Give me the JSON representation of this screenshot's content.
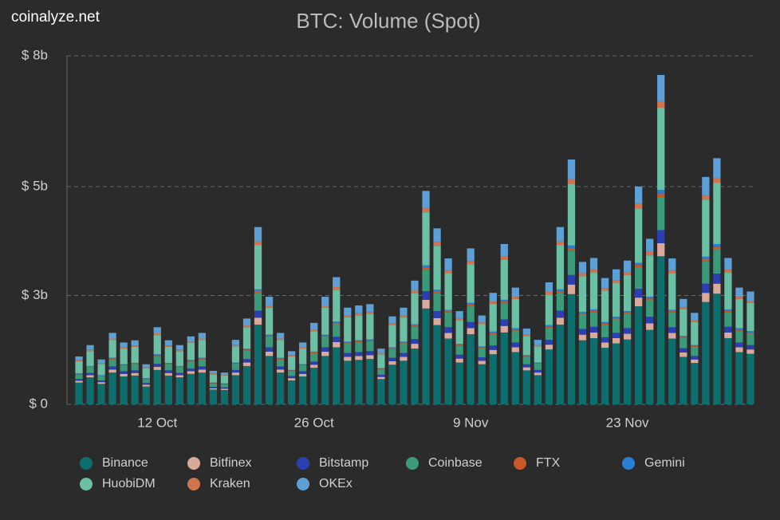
{
  "brand": "coinalyze.net",
  "chart_data": {
    "type": "stacked-bar",
    "title": "BTC: Volume (Spot)",
    "categories": [
      null,
      null,
      null,
      null,
      null,
      null,
      null,
      "12 Oct",
      null,
      null,
      null,
      null,
      null,
      null,
      null,
      null,
      null,
      null,
      null,
      null,
      null,
      "26 Oct",
      null,
      null,
      null,
      null,
      null,
      null,
      null,
      null,
      null,
      null,
      null,
      null,
      null,
      "9 Nov",
      null,
      null,
      null,
      null,
      null,
      null,
      null,
      null,
      null,
      null,
      null,
      null,
      null,
      "23 Nov",
      null,
      null,
      null,
      null,
      null,
      null,
      null,
      null,
      null,
      null,
      null
    ],
    "ylim": [
      0,
      8
    ],
    "yticks": [
      {
        "value": 0,
        "label": "$ 0"
      },
      {
        "value": 2.5,
        "label": "$ 3b"
      },
      {
        "value": 5,
        "label": "$ 5b"
      },
      {
        "value": 8,
        "label": "$ 8b"
      }
    ],
    "grid": true,
    "legend": "bottom",
    "series": [
      {
        "name": "Binance",
        "color": "#0e6e6e",
        "values": [
          0.5,
          0.62,
          0.47,
          0.73,
          0.64,
          0.66,
          0.41,
          0.79,
          0.66,
          0.62,
          0.7,
          0.73,
          0.34,
          0.33,
          0.67,
          0.88,
          1.83,
          1.11,
          0.73,
          0.55,
          0.64,
          0.84,
          1.11,
          1.31,
          1.0,
          1.02,
          1.04,
          0.58,
          0.91,
          1.0,
          1.28,
          2.2,
          1.82,
          1.51,
          0.96,
          1.61,
          0.92,
          1.15,
          1.65,
          1.2,
          0.78,
          0.67,
          1.26,
          1.83,
          2.53,
          1.47,
          1.52,
          1.3,
          1.4,
          1.49,
          2.25,
          1.71,
          3.4,
          1.51,
          1.09,
          0.95,
          2.35,
          2.54,
          1.52,
          1.2,
          1.16
        ]
      },
      {
        "name": "Bitfinex",
        "color": "#d9a99c",
        "values": [
          0.04,
          0.05,
          0.04,
          0.07,
          0.06,
          0.06,
          0.04,
          0.07,
          0.06,
          0.05,
          0.06,
          0.07,
          0.03,
          0.03,
          0.06,
          0.08,
          0.16,
          0.1,
          0.07,
          0.05,
          0.06,
          0.07,
          0.1,
          0.12,
          0.09,
          0.09,
          0.09,
          0.05,
          0.08,
          0.09,
          0.11,
          0.2,
          0.16,
          0.13,
          0.09,
          0.14,
          0.08,
          0.1,
          0.15,
          0.11,
          0.07,
          0.06,
          0.11,
          0.16,
          0.22,
          0.13,
          0.13,
          0.12,
          0.12,
          0.13,
          0.2,
          0.15,
          0.3,
          0.13,
          0.1,
          0.08,
          0.21,
          0.23,
          0.13,
          0.11,
          0.1
        ]
      },
      {
        "name": "Bitstamp",
        "color": "#2b3fb0",
        "values": [
          0.04,
          0.05,
          0.04,
          0.07,
          0.06,
          0.06,
          0.04,
          0.07,
          0.06,
          0.05,
          0.06,
          0.07,
          0.03,
          0.03,
          0.06,
          0.08,
          0.16,
          0.1,
          0.07,
          0.05,
          0.06,
          0.07,
          0.1,
          0.12,
          0.09,
          0.09,
          0.09,
          0.05,
          0.08,
          0.09,
          0.11,
          0.2,
          0.16,
          0.13,
          0.09,
          0.14,
          0.08,
          0.1,
          0.15,
          0.11,
          0.07,
          0.06,
          0.11,
          0.16,
          0.22,
          0.13,
          0.13,
          0.12,
          0.12,
          0.13,
          0.2,
          0.15,
          0.3,
          0.13,
          0.1,
          0.08,
          0.21,
          0.23,
          0.13,
          0.11,
          0.1
        ]
      },
      {
        "name": "Coinbase",
        "color": "#3a9a7a",
        "values": [
          0.11,
          0.14,
          0.1,
          0.16,
          0.14,
          0.15,
          0.09,
          0.18,
          0.15,
          0.14,
          0.16,
          0.16,
          0.08,
          0.07,
          0.15,
          0.2,
          0.41,
          0.25,
          0.16,
          0.12,
          0.14,
          0.19,
          0.25,
          0.29,
          0.22,
          0.23,
          0.23,
          0.13,
          0.2,
          0.22,
          0.28,
          0.49,
          0.41,
          0.34,
          0.21,
          0.36,
          0.21,
          0.26,
          0.37,
          0.27,
          0.17,
          0.15,
          0.28,
          0.41,
          0.56,
          0.33,
          0.34,
          0.29,
          0.31,
          0.33,
          0.5,
          0.38,
          0.76,
          0.34,
          0.24,
          0.21,
          0.52,
          0.56,
          0.34,
          0.27,
          0.26
        ]
      },
      {
        "name": "FTX",
        "color": "#c9582b",
        "values": [
          0.01,
          0.01,
          0.01,
          0.02,
          0.01,
          0.01,
          0.01,
          0.02,
          0.01,
          0.01,
          0.02,
          0.02,
          0.01,
          0.01,
          0.01,
          0.02,
          0.04,
          0.02,
          0.02,
          0.01,
          0.01,
          0.02,
          0.02,
          0.03,
          0.02,
          0.02,
          0.02,
          0.01,
          0.02,
          0.02,
          0.03,
          0.05,
          0.04,
          0.03,
          0.02,
          0.04,
          0.02,
          0.03,
          0.04,
          0.03,
          0.02,
          0.01,
          0.03,
          0.04,
          0.06,
          0.03,
          0.03,
          0.03,
          0.03,
          0.03,
          0.05,
          0.04,
          0.08,
          0.03,
          0.02,
          0.02,
          0.05,
          0.06,
          0.03,
          0.03,
          0.03
        ]
      },
      {
        "name": "Gemini",
        "color": "#2a7fd4",
        "values": [
          0.01,
          0.01,
          0.01,
          0.02,
          0.01,
          0.01,
          0.01,
          0.02,
          0.01,
          0.01,
          0.02,
          0.02,
          0.01,
          0.01,
          0.01,
          0.02,
          0.04,
          0.02,
          0.02,
          0.01,
          0.01,
          0.02,
          0.02,
          0.03,
          0.02,
          0.02,
          0.02,
          0.01,
          0.02,
          0.02,
          0.03,
          0.05,
          0.04,
          0.03,
          0.02,
          0.04,
          0.02,
          0.03,
          0.04,
          0.03,
          0.02,
          0.01,
          0.03,
          0.04,
          0.06,
          0.03,
          0.03,
          0.03,
          0.03,
          0.03,
          0.05,
          0.04,
          0.08,
          0.03,
          0.02,
          0.02,
          0.05,
          0.06,
          0.03,
          0.03,
          0.03
        ]
      },
      {
        "name": "HuobiDM",
        "color": "#6bbfa5",
        "values": [
          0.28,
          0.34,
          0.26,
          0.41,
          0.36,
          0.37,
          0.23,
          0.44,
          0.37,
          0.34,
          0.39,
          0.41,
          0.19,
          0.18,
          0.37,
          0.49,
          1.02,
          0.62,
          0.41,
          0.31,
          0.36,
          0.47,
          0.62,
          0.73,
          0.56,
          0.57,
          0.58,
          0.32,
          0.51,
          0.56,
          0.71,
          1.22,
          1.01,
          0.84,
          0.54,
          0.89,
          0.51,
          0.64,
          0.92,
          0.67,
          0.44,
          0.37,
          0.7,
          1.02,
          1.41,
          0.82,
          0.84,
          0.72,
          0.78,
          0.83,
          1.25,
          0.95,
          1.89,
          0.84,
          0.61,
          0.53,
          1.31,
          1.41,
          0.84,
          0.67,
          0.65
        ]
      },
      {
        "name": "Kraken",
        "color": "#d0734f",
        "values": [
          0.02,
          0.03,
          0.02,
          0.03,
          0.03,
          0.03,
          0.02,
          0.04,
          0.03,
          0.03,
          0.03,
          0.03,
          0.02,
          0.01,
          0.03,
          0.04,
          0.08,
          0.05,
          0.03,
          0.02,
          0.03,
          0.04,
          0.05,
          0.06,
          0.04,
          0.05,
          0.05,
          0.03,
          0.04,
          0.04,
          0.06,
          0.1,
          0.08,
          0.07,
          0.04,
          0.07,
          0.04,
          0.05,
          0.07,
          0.05,
          0.03,
          0.03,
          0.06,
          0.08,
          0.11,
          0.07,
          0.07,
          0.06,
          0.06,
          0.07,
          0.1,
          0.08,
          0.15,
          0.07,
          0.05,
          0.04,
          0.1,
          0.11,
          0.07,
          0.05,
          0.05
        ]
      },
      {
        "name": "OKEx",
        "color": "#5ea0d6",
        "values": [
          0.09,
          0.11,
          0.08,
          0.13,
          0.11,
          0.12,
          0.07,
          0.14,
          0.12,
          0.11,
          0.12,
          0.13,
          0.06,
          0.06,
          0.12,
          0.16,
          0.33,
          0.2,
          0.13,
          0.1,
          0.11,
          0.15,
          0.2,
          0.23,
          0.18,
          0.18,
          0.18,
          0.1,
          0.16,
          0.18,
          0.23,
          0.39,
          0.32,
          0.27,
          0.17,
          0.29,
          0.16,
          0.2,
          0.29,
          0.21,
          0.14,
          0.12,
          0.22,
          0.33,
          0.45,
          0.26,
          0.27,
          0.23,
          0.25,
          0.26,
          0.4,
          0.3,
          0.6,
          0.27,
          0.19,
          0.17,
          0.42,
          0.45,
          0.27,
          0.21,
          0.21
        ]
      }
    ]
  }
}
